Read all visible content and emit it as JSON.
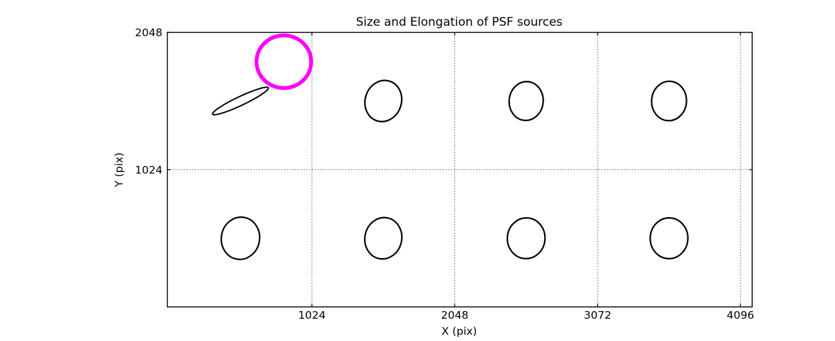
{
  "figure": {
    "background": "#ffffff"
  },
  "chart_data": {
    "type": "scatter-ellipse",
    "title": "Size and Elongation of PSF sources",
    "xlabel": "X (pix)",
    "ylabel": "Y (pix)",
    "xlim": [
      -12,
      4180
    ],
    "ylim": [
      0,
      2048
    ],
    "xticks": [
      1024,
      2048,
      3072,
      4096
    ],
    "yticks": [
      1024,
      2048
    ],
    "grid": "dotted",
    "legend": "none",
    "colors": {
      "axis": "#000000",
      "grid": "#000000",
      "psf_ellipse": "#000000",
      "highlight": "#ff00ff"
    },
    "ellipses": [
      {
        "name": "elongated-psf-ellipse",
        "x": 512,
        "y": 1536,
        "rx": 221,
        "ry": 33,
        "tilt_deg": -25.3,
        "color": "#000000",
        "stroke_width": 2.0
      },
      {
        "name": "highlight-circle",
        "x": 823,
        "y": 1829,
        "rx": 196,
        "ry": 196,
        "tilt_deg": 0,
        "color": "#ff00ff",
        "stroke_width": 5.5
      },
      {
        "name": "psf-ellipse",
        "x": 1536,
        "y": 1536,
        "rx": 130,
        "ry": 155,
        "tilt_deg": 18,
        "color": "#000000",
        "stroke_width": 2.2
      },
      {
        "name": "psf-ellipse",
        "x": 2560,
        "y": 1536,
        "rx": 122,
        "ry": 145,
        "tilt_deg": 6,
        "color": "#000000",
        "stroke_width": 2.2
      },
      {
        "name": "psf-ellipse",
        "x": 3584,
        "y": 1536,
        "rx": 125,
        "ry": 147,
        "tilt_deg": 4,
        "color": "#000000",
        "stroke_width": 2.2
      },
      {
        "name": "psf-ellipse",
        "x": 512,
        "y": 512,
        "rx": 137,
        "ry": 158,
        "tilt_deg": 10,
        "color": "#000000",
        "stroke_width": 2.2
      },
      {
        "name": "psf-ellipse",
        "x": 1536,
        "y": 512,
        "rx": 132,
        "ry": 155,
        "tilt_deg": 12,
        "color": "#000000",
        "stroke_width": 2.2
      },
      {
        "name": "psf-ellipse",
        "x": 2560,
        "y": 512,
        "rx": 135,
        "ry": 152,
        "tilt_deg": 5,
        "color": "#000000",
        "stroke_width": 2.2
      },
      {
        "name": "psf-ellipse",
        "x": 3584,
        "y": 512,
        "rx": 135,
        "ry": 152,
        "tilt_deg": 2,
        "color": "#000000",
        "stroke_width": 2.2
      }
    ]
  }
}
